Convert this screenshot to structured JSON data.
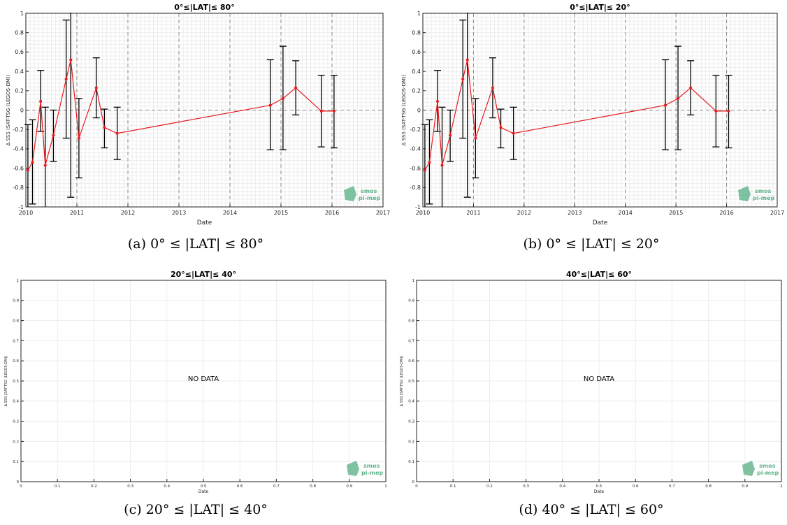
{
  "logo": {
    "line1": "smos",
    "line2": "pi-mep",
    "color": "#5fb38a"
  },
  "colors": {
    "series": "#e8191c",
    "errorbar": "#000000",
    "grid_minor": "#ececec",
    "grid_major_dash": "#8a8a8a"
  },
  "chart_data": [
    {
      "type": "line",
      "title": "0°≤|LAT|≤ 80°",
      "caption": "(a) 0° ≤ |LAT| ≤ 80°",
      "xlabel": "Date",
      "ylabel": "Δ SSS (SAT-TSG (LEGOS-DM))",
      "xlim": [
        2010,
        2017
      ],
      "ylim": [
        -1,
        1
      ],
      "xticks": [
        "2010",
        "2011",
        "2012",
        "2013",
        "2014",
        "2015",
        "2016",
        "2017"
      ],
      "yticks": [
        "-1",
        "-0.8",
        "-0.6",
        "-0.4",
        "-0.2",
        "0",
        "0.2",
        "0.4",
        "0.6",
        "0.8",
        "1"
      ],
      "series": [
        {
          "x": [
            2010.04,
            2010.13,
            2010.29,
            2010.38,
            2010.54,
            2010.79,
            2010.88,
            2011.04,
            2011.38,
            2011.54,
            2011.79,
            2014.79,
            2015.04,
            2015.29,
            2015.79,
            2016.04
          ],
          "y": [
            -0.62,
            -0.54,
            0.09,
            -0.57,
            -0.26,
            0.32,
            0.52,
            -0.29,
            0.23,
            -0.18,
            -0.24,
            0.05,
            0.12,
            0.23,
            -0.01,
            -0.01
          ],
          "err_low": [
            -1.1,
            -0.97,
            -0.22,
            -1.2,
            -0.53,
            -0.29,
            -0.9,
            -0.7,
            -0.08,
            -0.39,
            -0.51,
            -0.41,
            -0.41,
            -0.05,
            -0.38,
            -0.39
          ],
          "err_high": [
            -0.15,
            -0.1,
            0.41,
            0.03,
            0.0,
            0.93,
            1.3,
            0.12,
            0.54,
            0.01,
            0.03,
            0.52,
            0.66,
            0.51,
            0.36,
            0.36
          ]
        }
      ]
    },
    {
      "type": "line",
      "title": "0°≤|LAT|≤ 20°",
      "caption": "(b) 0° ≤ |LAT| ≤ 20°",
      "xlabel": "Date",
      "ylabel": "Δ SSS (SAT-TSG (LEGOS-DM))",
      "xlim": [
        2010,
        2017
      ],
      "ylim": [
        -1,
        1
      ],
      "xticks": [
        "2010",
        "2011",
        "2012",
        "2013",
        "2014",
        "2015",
        "2016",
        "2017"
      ],
      "yticks": [
        "-1",
        "-0.8",
        "-0.6",
        "-0.4",
        "-0.2",
        "0",
        "0.2",
        "0.4",
        "0.6",
        "0.8",
        "1"
      ],
      "series": [
        {
          "x": [
            2010.04,
            2010.13,
            2010.29,
            2010.38,
            2010.54,
            2010.79,
            2010.88,
            2011.04,
            2011.38,
            2011.54,
            2011.79,
            2014.79,
            2015.04,
            2015.29,
            2015.79,
            2016.04
          ],
          "y": [
            -0.62,
            -0.54,
            0.09,
            -0.57,
            -0.26,
            0.32,
            0.52,
            -0.29,
            0.23,
            -0.18,
            -0.24,
            0.05,
            0.12,
            0.23,
            -0.01,
            -0.01
          ],
          "err_low": [
            -1.1,
            -0.97,
            -0.22,
            -1.2,
            -0.53,
            -0.29,
            -0.9,
            -0.7,
            -0.08,
            -0.39,
            -0.51,
            -0.41,
            -0.41,
            -0.05,
            -0.38,
            -0.39
          ],
          "err_high": [
            -0.15,
            -0.1,
            0.41,
            0.03,
            0.0,
            0.93,
            1.3,
            0.12,
            0.54,
            0.01,
            0.03,
            0.52,
            0.66,
            0.51,
            0.36,
            0.36
          ]
        }
      ]
    },
    {
      "type": "line",
      "title": "20°≤|LAT|≤ 40°",
      "caption": "(c) 20° ≤ |LAT| ≤ 40°",
      "xlabel": "Date",
      "ylabel": "Δ SSS (SAT-TSG (LEGOS-DM))",
      "xlim": [
        0,
        1
      ],
      "ylim": [
        0,
        1
      ],
      "xticks": [
        "0",
        "0.1",
        "0.2",
        "0.3",
        "0.4",
        "0.5",
        "0.6",
        "0.7",
        "0.8",
        "0.9",
        "1"
      ],
      "yticks": [
        "0",
        "0.1",
        "0.2",
        "0.3",
        "0.4",
        "0.5",
        "0.6",
        "0.7",
        "0.8",
        "0.9",
        "1"
      ],
      "message": "NO DATA",
      "series": []
    },
    {
      "type": "line",
      "title": "40°≤|LAT|≤ 60°",
      "caption": "(d) 40° ≤ |LAT| ≤ 60°",
      "xlabel": "Date",
      "ylabel": "Δ SSS (SAT-TSG (LEGOS-DM))",
      "xlim": [
        0,
        1
      ],
      "ylim": [
        0,
        1
      ],
      "xticks": [
        "0",
        "0.1",
        "0.2",
        "0.3",
        "0.4",
        "0.5",
        "0.6",
        "0.7",
        "0.8",
        "0.9",
        "1"
      ],
      "yticks": [
        "0",
        "0.1",
        "0.2",
        "0.3",
        "0.4",
        "0.5",
        "0.6",
        "0.7",
        "0.8",
        "0.9",
        "1"
      ],
      "message": "NO DATA",
      "series": []
    }
  ]
}
